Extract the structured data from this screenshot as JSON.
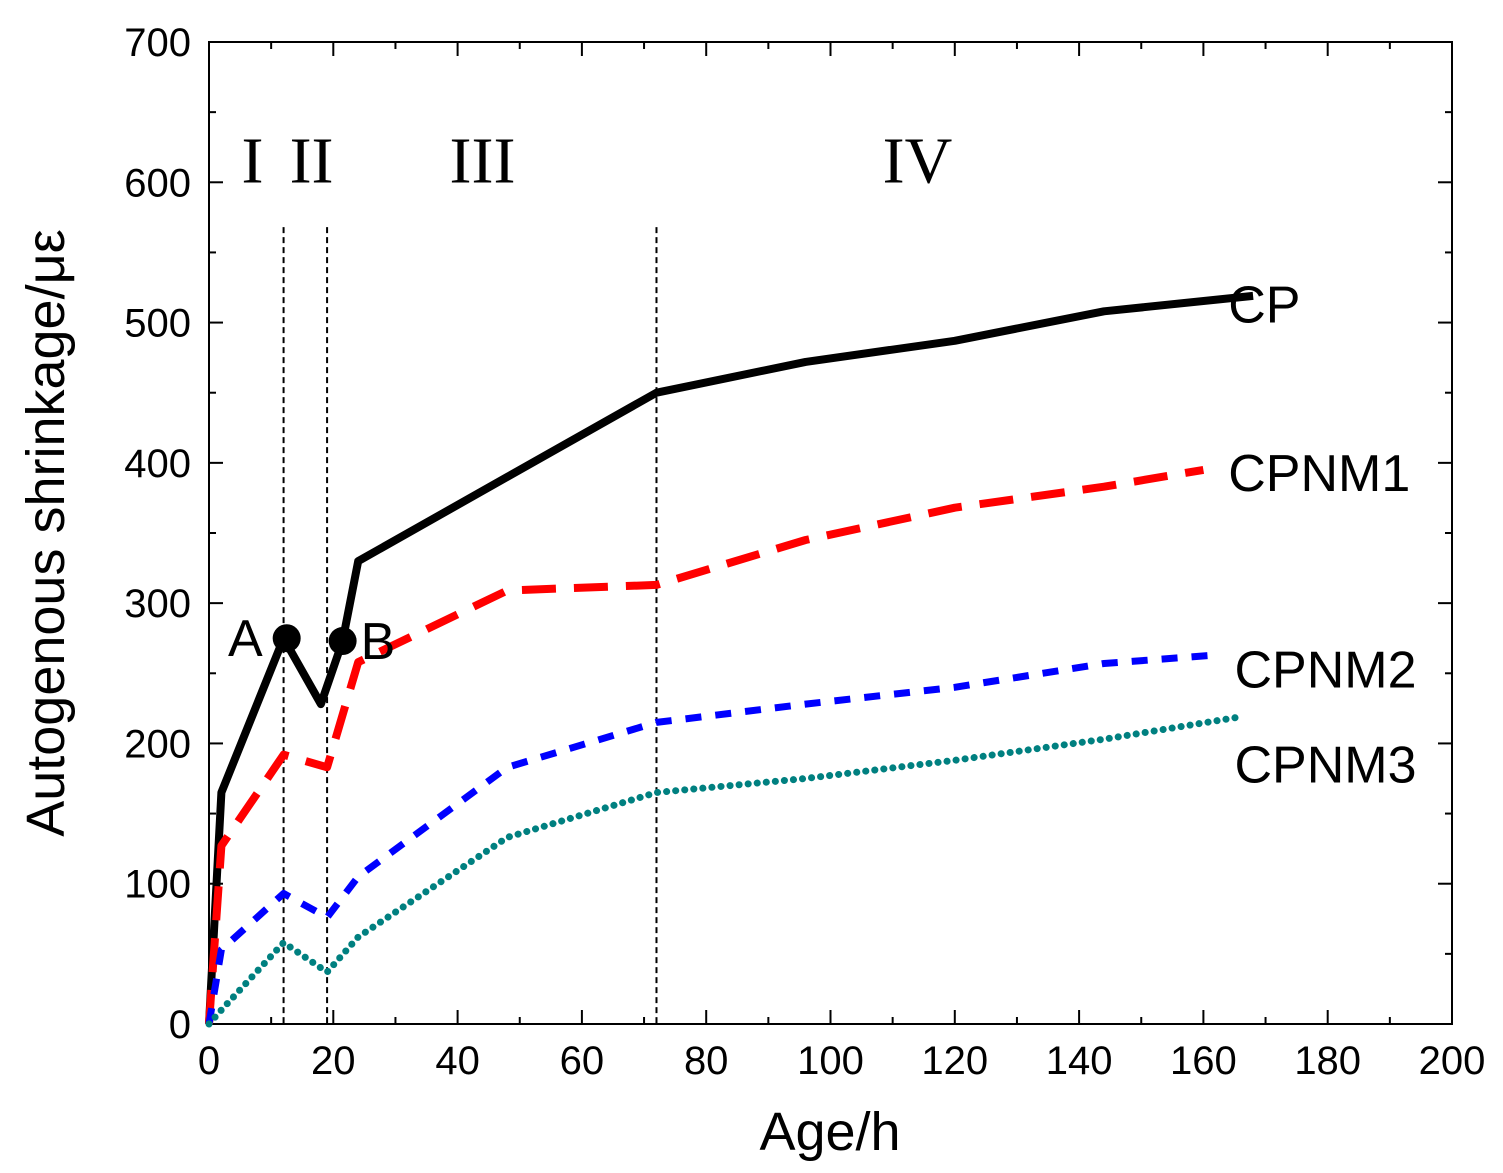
{
  "chart_data": {
    "type": "line",
    "title": "",
    "xlabel": "Age/h",
    "ylabel": "Autogenous shrinkage/με",
    "xlim": [
      0,
      200
    ],
    "ylim": [
      0,
      700
    ],
    "xticks": [
      0,
      20,
      40,
      60,
      80,
      100,
      120,
      140,
      160,
      180,
      200
    ],
    "yticks": [
      0,
      100,
      200,
      300,
      400,
      500,
      600,
      700
    ],
    "grid": false,
    "legend": "inline labels at right end of each series",
    "stage_boundaries": [
      12,
      19,
      72
    ],
    "stage_labels": [
      {
        "text": "I",
        "x": 7
      },
      {
        "text": "II",
        "x": 16.5
      },
      {
        "text": "III",
        "x": 44
      },
      {
        "text": "IV",
        "x": 114
      }
    ],
    "points": [
      {
        "label": "A",
        "x": 12.5,
        "y": 275
      },
      {
        "label": "B",
        "x": 21.5,
        "y": 273
      }
    ],
    "series": [
      {
        "name": "CP",
        "color": "#000000",
        "style": "solid",
        "x": [
          0,
          2,
          12,
          18,
          21.5,
          24,
          48,
          72,
          96,
          120,
          144,
          168
        ],
        "y": [
          0,
          165,
          275,
          228,
          273,
          330,
          390,
          450,
          472,
          487,
          508,
          519
        ]
      },
      {
        "name": "CPNM1",
        "color": "#ff0000",
        "style": "dashed",
        "x": [
          0,
          2,
          12,
          19,
          24,
          48,
          72,
          96,
          120,
          144,
          160
        ],
        "y": [
          0,
          127,
          192,
          183,
          258,
          309,
          313,
          345,
          368,
          383,
          395
        ]
      },
      {
        "name": "CPNM2",
        "color": "#0000ff",
        "style": "short-dashed",
        "x": [
          0,
          2,
          12,
          19,
          24,
          48,
          72,
          96,
          120,
          144,
          162
        ],
        "y": [
          0,
          53,
          93,
          76,
          105,
          183,
          215,
          228,
          240,
          257,
          263
        ]
      },
      {
        "name": "CPNM3",
        "color": "#008080",
        "style": "dotted",
        "x": [
          0,
          2,
          12,
          19,
          24,
          48,
          72,
          96,
          120,
          144,
          166
        ],
        "y": [
          0,
          10,
          58,
          37,
          62,
          133,
          165,
          175,
          188,
          203,
          219
        ]
      }
    ]
  }
}
